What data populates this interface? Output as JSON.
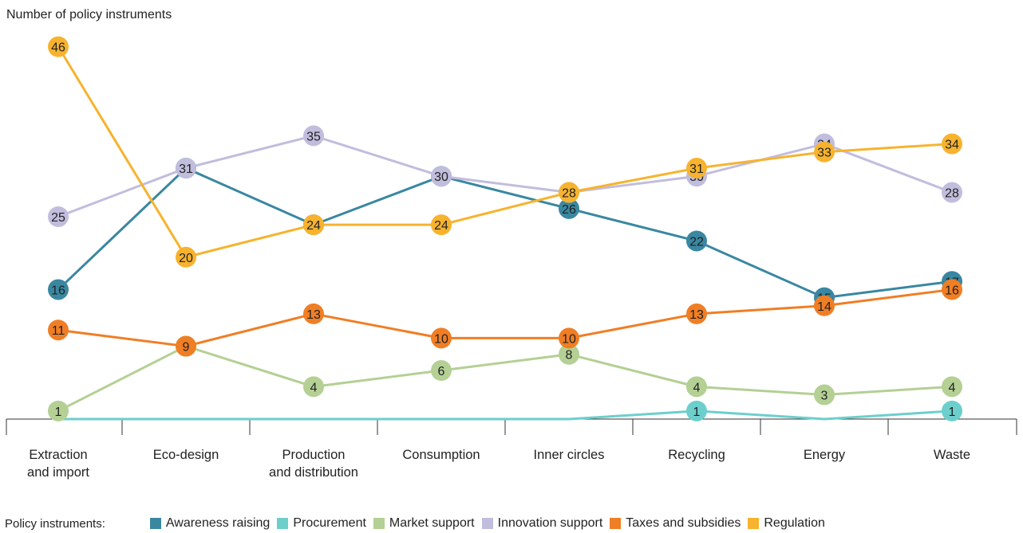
{
  "chart_data": {
    "type": "line",
    "ylabel": "Number of policy instruments",
    "categories": [
      "Extraction\nand import",
      "Eco-design",
      "Production\nand distribution",
      "Consumption",
      "Inner circles",
      "Recycling",
      "Energy",
      "Waste"
    ],
    "ylim": [
      0,
      50
    ],
    "grid": false,
    "legend_title": "Policy instruments:",
    "legend_position": "bottom",
    "series": [
      {
        "name": "Awareness raising",
        "color": "#3a87a1",
        "values": [
          16,
          31,
          24,
          30,
          26,
          22,
          15,
          17
        ],
        "labels": [
          true,
          true,
          true,
          true,
          true,
          true,
          true,
          true
        ]
      },
      {
        "name": "Procurement",
        "color": "#6ccfcc",
        "values": [
          0,
          0,
          0,
          0,
          0,
          1,
          0,
          1
        ],
        "labels": [
          false,
          false,
          false,
          false,
          false,
          true,
          false,
          true
        ]
      },
      {
        "name": "Market support",
        "color": "#b4d094",
        "values": [
          1,
          9,
          4,
          6,
          8,
          4,
          3,
          4
        ],
        "labels": [
          true,
          true,
          true,
          true,
          true,
          true,
          true,
          true
        ]
      },
      {
        "name": "Innovation support",
        "color": "#c1bddd",
        "values": [
          25,
          31,
          35,
          30,
          28,
          30,
          34,
          28
        ],
        "labels": [
          true,
          true,
          true,
          true,
          true,
          true,
          true,
          true
        ]
      },
      {
        "name": "Taxes and subsidies",
        "color": "#f07e25",
        "values": [
          11,
          9,
          13,
          10,
          10,
          13,
          14,
          16
        ],
        "labels": [
          true,
          true,
          true,
          true,
          true,
          true,
          true,
          true
        ]
      },
      {
        "name": "Regulation",
        "color": "#f7b32e",
        "values": [
          46,
          20,
          24,
          24,
          28,
          31,
          33,
          34
        ],
        "labels": [
          true,
          true,
          true,
          true,
          true,
          true,
          true,
          true
        ]
      }
    ]
  }
}
